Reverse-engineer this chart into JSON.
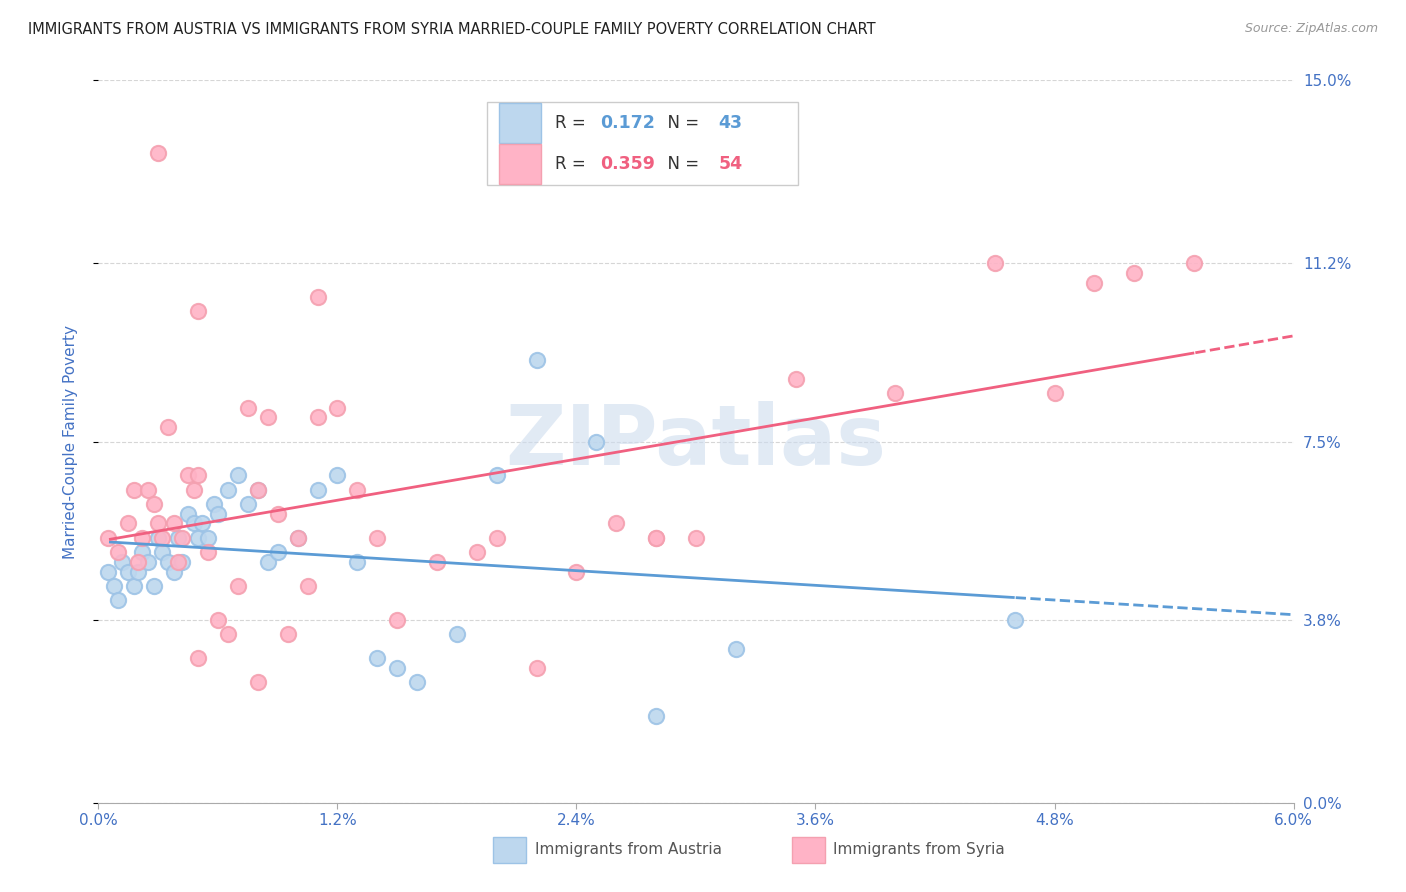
{
  "title": "IMMIGRANTS FROM AUSTRIA VS IMMIGRANTS FROM SYRIA MARRIED-COUPLE FAMILY POVERTY CORRELATION CHART",
  "source": "Source: ZipAtlas.com",
  "ylabel": "Married-Couple Family Poverty",
  "legend_austria": "Immigrants from Austria",
  "legend_syria": "Immigrants from Syria",
  "r_austria": 0.172,
  "n_austria": 43,
  "r_syria": 0.359,
  "n_syria": 54,
  "color_austria_fill": "#BDD7EE",
  "color_austria_edge": "#9DC3E6",
  "color_austria_line": "#5B9BD5",
  "color_syria_fill": "#FFB3C6",
  "color_syria_edge": "#F4A0B0",
  "color_syria_line": "#F06080",
  "xmin": 0.0,
  "xmax": 6.0,
  "ymin": 0.0,
  "ymax": 15.0,
  "yticks": [
    0.0,
    3.8,
    7.5,
    11.2,
    15.0
  ],
  "xtick_vals": [
    0.0,
    1.2,
    2.4,
    3.6,
    4.8,
    6.0
  ],
  "xtick_labels": [
    "0.0%",
    "1.2%",
    "2.4%",
    "3.6%",
    "4.8%",
    "6.0%"
  ],
  "ytick_labels": [
    "0.0%",
    "3.8%",
    "7.5%",
    "11.2%",
    "15.0%"
  ],
  "austria_x": [
    0.05,
    0.08,
    0.1,
    0.12,
    0.15,
    0.18,
    0.2,
    0.22,
    0.25,
    0.28,
    0.3,
    0.32,
    0.35,
    0.38,
    0.4,
    0.42,
    0.45,
    0.48,
    0.5,
    0.52,
    0.55,
    0.58,
    0.6,
    0.65,
    0.7,
    0.75,
    0.8,
    0.85,
    0.9,
    1.0,
    1.1,
    1.2,
    1.3,
    1.4,
    1.5,
    1.6,
    1.8,
    2.0,
    2.2,
    2.5,
    2.8,
    3.2,
    4.6
  ],
  "austria_y": [
    4.8,
    4.5,
    4.2,
    5.0,
    4.8,
    4.5,
    4.8,
    5.2,
    5.0,
    4.5,
    5.5,
    5.2,
    5.0,
    4.8,
    5.5,
    5.0,
    6.0,
    5.8,
    5.5,
    5.8,
    5.5,
    6.2,
    6.0,
    6.5,
    6.8,
    6.2,
    6.5,
    5.0,
    5.2,
    5.5,
    6.5,
    6.8,
    5.0,
    3.0,
    2.8,
    2.5,
    3.5,
    6.8,
    9.2,
    7.5,
    1.8,
    3.2,
    3.8
  ],
  "syria_x": [
    0.05,
    0.1,
    0.15,
    0.18,
    0.2,
    0.22,
    0.25,
    0.28,
    0.3,
    0.32,
    0.35,
    0.38,
    0.4,
    0.42,
    0.45,
    0.48,
    0.5,
    0.55,
    0.6,
    0.65,
    0.7,
    0.75,
    0.8,
    0.85,
    0.9,
    0.95,
    1.0,
    1.05,
    1.1,
    1.2,
    1.3,
    1.4,
    1.5,
    1.7,
    1.9,
    2.0,
    2.2,
    2.4,
    2.6,
    2.8,
    3.0,
    3.5,
    4.0,
    4.5,
    4.8,
    5.0,
    5.2,
    5.5,
    0.3,
    0.5,
    0.8,
    1.1,
    2.8,
    0.5
  ],
  "syria_y": [
    5.5,
    5.2,
    5.8,
    6.5,
    5.0,
    5.5,
    6.5,
    6.2,
    5.8,
    5.5,
    7.8,
    5.8,
    5.0,
    5.5,
    6.8,
    6.5,
    6.8,
    5.2,
    3.8,
    3.5,
    4.5,
    8.2,
    6.5,
    8.0,
    6.0,
    3.5,
    5.5,
    4.5,
    8.0,
    8.2,
    6.5,
    5.5,
    3.8,
    5.0,
    5.2,
    5.5,
    2.8,
    4.8,
    5.8,
    5.5,
    5.5,
    8.8,
    8.5,
    11.2,
    8.5,
    10.8,
    11.0,
    11.2,
    13.5,
    10.2,
    2.5,
    10.5,
    5.5,
    3.0
  ],
  "background_color": "#ffffff",
  "grid_color": "#cccccc",
  "title_color": "#222222",
  "axis_label_color": "#4472c4",
  "tick_label_color": "#4472c4",
  "watermark_text": "ZIPatlas",
  "watermark_color": "#cddcee"
}
